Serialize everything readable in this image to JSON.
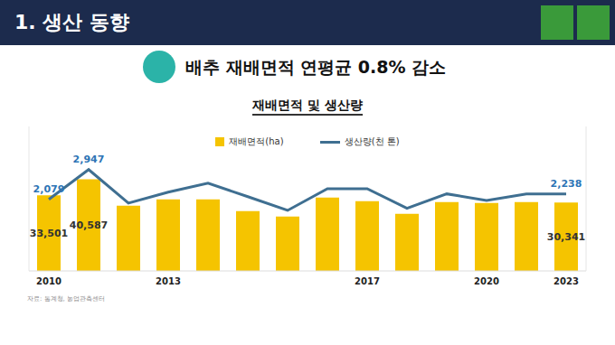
{
  "header": "1. 생산 동향",
  "chart_data": {
    "type": "bar",
    "title": "배추 재배면적 연평균 0.8% 감소",
    "subtitle": "재배면적 및 생산량",
    "source": "자료: 통계청, 농업관측센터",
    "categories": [
      "2010",
      null,
      null,
      "2013",
      null,
      null,
      null,
      null,
      "2017",
      null,
      null,
      "2020",
      null,
      "2023"
    ],
    "series": [
      {
        "name": "재배면적(ha)",
        "type": "bar",
        "color": "#f5c400",
        "values": [
          33501,
          40587,
          28900,
          31700,
          31700,
          26500,
          24100,
          32500,
          30900,
          25300,
          30500,
          30100,
          30500,
          30341
        ],
        "value_labels": [
          "33,501",
          "40,587",
          null,
          null,
          null,
          null,
          null,
          null,
          null,
          null,
          null,
          null,
          null,
          "30,341"
        ],
        "data_labels": true
      },
      {
        "name": "생산량(천 톤)",
        "type": "line",
        "axis": "y2",
        "color": "#3f6f91",
        "values": [
          2079,
          2947,
          1970,
          2290,
          2550,
          2160,
          1760,
          2390,
          2390,
          1820,
          2240,
          2050,
          2240,
          2238
        ],
        "value_labels": [
          "2,079",
          "2,947",
          null,
          null,
          null,
          null,
          null,
          null,
          null,
          null,
          null,
          null,
          null,
          "2,238"
        ],
        "data_labels": true
      }
    ],
    "ylim": [
      0,
      64000
    ],
    "y2lim": [
      0,
      4200
    ],
    "tick_labels": "x",
    "legend": "top"
  }
}
